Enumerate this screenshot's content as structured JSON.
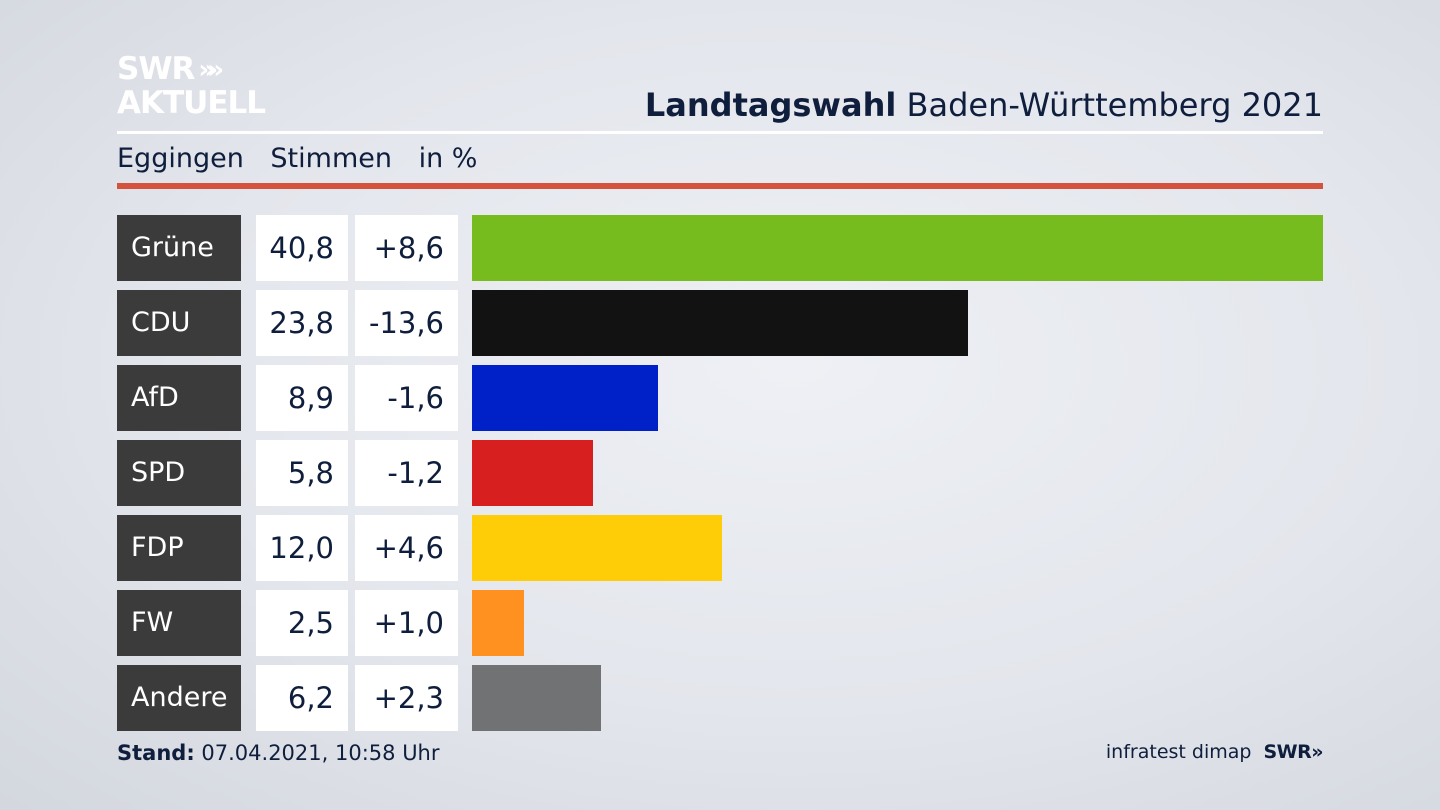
{
  "logo": {
    "line1": "SWR",
    "arrows": "»»",
    "line2": "AKTUELL"
  },
  "header": {
    "title_bold": "Landtagswahl",
    "title_rest": "Baden-Württemberg 2021"
  },
  "subheader": {
    "place": "Eggingen",
    "col1": "Stimmen",
    "col2": "in %"
  },
  "chart_data": {
    "type": "bar",
    "orientation": "horizontal",
    "categories": [
      "Grüne",
      "CDU",
      "AfD",
      "SPD",
      "FDP",
      "FW",
      "Andere"
    ],
    "values": [
      40.8,
      23.8,
      8.9,
      5.8,
      12.0,
      2.5,
      6.2
    ],
    "value_labels": [
      "40,8",
      "23,8",
      "8,9",
      "5,8",
      "12,0",
      "2,5",
      "6,2"
    ],
    "diff_labels": [
      "+8,6",
      "-13,6",
      "-1,6",
      "-1,2",
      "+4,6",
      "+1,0",
      "+2,3"
    ],
    "colors": [
      "#77bc1f",
      "#121212",
      "#0021c8",
      "#d71f1f",
      "#ffcc08",
      "#ff9120",
      "#717274"
    ],
    "xlim": [
      0,
      40.8
    ],
    "grid": false
  },
  "footer": {
    "stand_label": "Stand:",
    "stand_value": "07.04.2021, 10:58 Uhr",
    "source": "infratest dimap",
    "brand": "SWR»"
  }
}
